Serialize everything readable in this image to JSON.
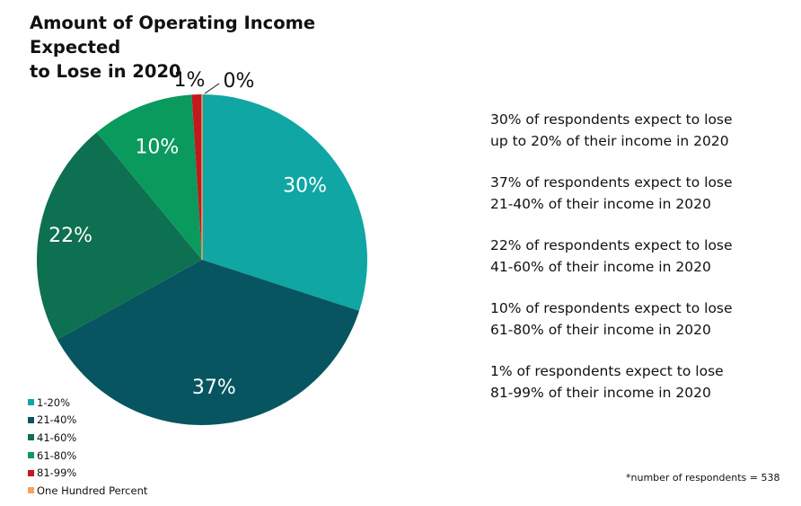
{
  "title_line1": "Amount of Operating Income Expected",
  "title_line2": "to Lose in 2020",
  "chart_data": {
    "type": "pie",
    "title": "Amount of Operating Income Expected to Lose in 2020",
    "categories": [
      "1-20%",
      "21-40%",
      "41-60%",
      "61-80%",
      "81-99%",
      "One Hundred Percent"
    ],
    "values": [
      30,
      37,
      22,
      10,
      1,
      0
    ],
    "value_labels": [
      "30%",
      "37%",
      "22%",
      "10%",
      "1%",
      "0%"
    ],
    "colors": [
      "#0fa6a4",
      "#075560",
      "#0d7050",
      "#0a9a5e",
      "#c0191f",
      "#f3a368"
    ],
    "legend_position": "bottom-left"
  },
  "descriptions": [
    {
      "line1": "30% of respondents expect to lose",
      "line2": "up to 20% of their income in 2020"
    },
    {
      "line1": "37% of respondents expect to lose",
      "line2": "21-40% of their income in 2020"
    },
    {
      "line1": "22% of respondents expect to lose",
      "line2": "41-60% of their income in 2020"
    },
    {
      "line1": "10% of respondents expect to lose",
      "line2": "61-80% of their income in 2020"
    },
    {
      "line1": "1% of respondents expect to lose",
      "line2": "81-99% of their income in 2020"
    }
  ],
  "footnote": "*number of respondents = 538"
}
